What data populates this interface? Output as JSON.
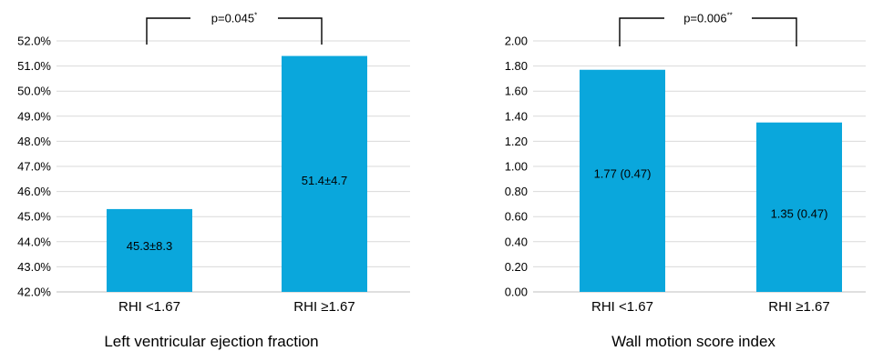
{
  "chart_data": [
    {
      "type": "bar",
      "title": "Left ventricular ejection fraction",
      "categories": [
        "RHI <1.67",
        "RHI ≥1.67"
      ],
      "values": [
        45.3,
        51.4
      ],
      "data_labels": [
        "45.3±8.3",
        "51.4±4.7"
      ],
      "ylim": [
        42,
        52
      ],
      "yticks": [
        "42.0%",
        "43.0%",
        "44.0%",
        "45.0%",
        "46.0%",
        "47.0%",
        "48.0%",
        "49.0%",
        "50.0%",
        "51.0%",
        "52.0%"
      ],
      "grid": true,
      "annotation": {
        "text": "p=0.045",
        "marker": "*"
      },
      "bar_color": "#0aa7dc"
    },
    {
      "type": "bar",
      "title": "Wall motion score index",
      "categories": [
        "RHI <1.67",
        "RHI ≥1.67"
      ],
      "values": [
        1.77,
        1.35
      ],
      "data_labels": [
        "1.77 (0.47)",
        "1.35 (0.47)"
      ],
      "ylim": [
        0,
        2
      ],
      "yticks": [
        "0.00",
        "0.20",
        "0.40",
        "0.60",
        "0.80",
        "1.00",
        "1.20",
        "1.40",
        "1.60",
        "1.80",
        "2.00"
      ],
      "grid": true,
      "annotation": {
        "text": "p=0.006",
        "marker": "**"
      },
      "bar_color": "#0aa7dc"
    }
  ]
}
